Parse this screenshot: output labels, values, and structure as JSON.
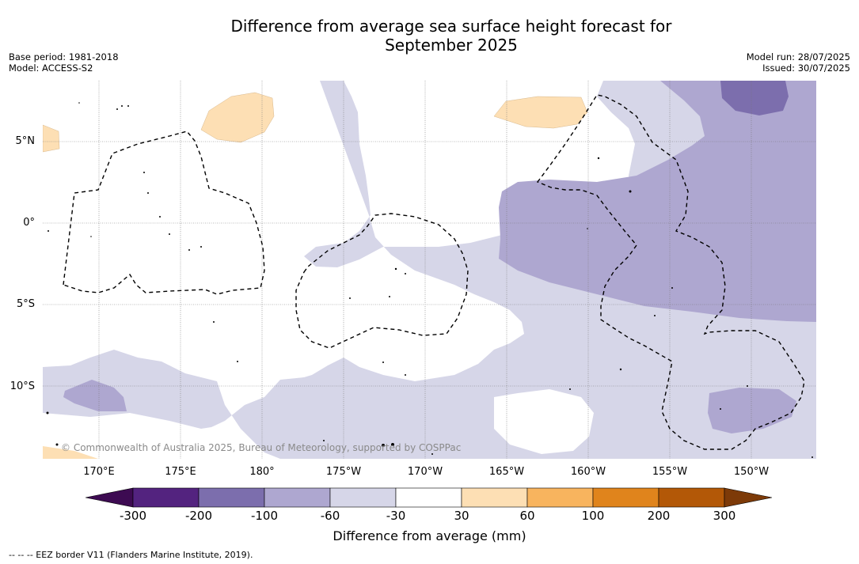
{
  "title_line1": "Difference from average sea surface height forecast for",
  "title_line2": "September 2025",
  "meta_left": {
    "base_period": "Base period: 1981-2018",
    "model": "Model: ACCESS-S2"
  },
  "meta_right": {
    "model_run": "Model run: 28/07/2025",
    "issued": "Issued: 30/07/2025"
  },
  "map": {
    "latitude_labels": [
      "5°N",
      "0°",
      "5°S",
      "10°S"
    ],
    "longitude_labels": [
      "170°E",
      "175°E",
      "180°",
      "175°W",
      "170°W",
      "165°W",
      "160°W",
      "155°W",
      "150°W"
    ],
    "copyright": "© Commonwealth of Australia 2025, Bureau of Meteorology, supported by COSPPac"
  },
  "colorbar": {
    "ticks": [
      "-300",
      "-200",
      "-100",
      "-60",
      "-30",
      "30",
      "60",
      "100",
      "200",
      "300"
    ],
    "colors": [
      "#3d0b52",
      "#53237f",
      "#7c6ead",
      "#aea7d0",
      "#d6d6e8",
      "#ffffff",
      "#fddfb4",
      "#f8b45e",
      "#e0841c",
      "#b35807",
      "#7d3a08"
    ],
    "title": "Difference from average (mm)"
  },
  "legend_note": "--  --  -- EEZ border V11 (Flanders Marine Institute, 2019)."
}
